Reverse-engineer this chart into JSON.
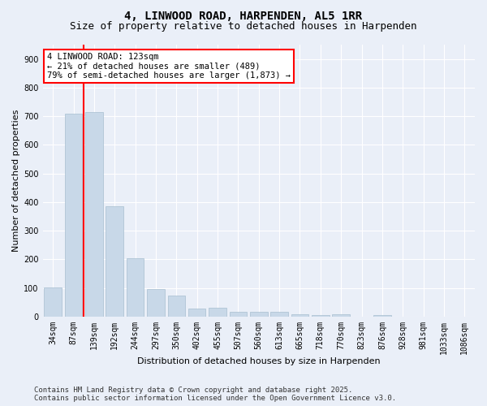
{
  "title": "4, LINWOOD ROAD, HARPENDEN, AL5 1RR",
  "subtitle": "Size of property relative to detached houses in Harpenden",
  "xlabel": "Distribution of detached houses by size in Harpenden",
  "ylabel": "Number of detached properties",
  "categories": [
    "34sqm",
    "87sqm",
    "139sqm",
    "192sqm",
    "244sqm",
    "297sqm",
    "350sqm",
    "402sqm",
    "455sqm",
    "507sqm",
    "560sqm",
    "613sqm",
    "665sqm",
    "718sqm",
    "770sqm",
    "823sqm",
    "876sqm",
    "928sqm",
    "981sqm",
    "1033sqm",
    "1086sqm"
  ],
  "values": [
    103,
    710,
    715,
    385,
    205,
    97,
    73,
    28,
    30,
    18,
    17,
    17,
    8,
    5,
    8,
    0,
    5,
    0,
    0,
    0,
    0
  ],
  "bar_color": "#c8d8e8",
  "bar_edge_color": "#a8bfd0",
  "vline_color": "red",
  "vline_x": 1.5,
  "annotation_text": "4 LINWOOD ROAD: 123sqm\n← 21% of detached houses are smaller (489)\n79% of semi-detached houses are larger (1,873) →",
  "annotation_box_color": "white",
  "annotation_box_edge": "red",
  "background_color": "#eaeff8",
  "grid_color": "white",
  "ylim": [
    0,
    950
  ],
  "yticks": [
    0,
    100,
    200,
    300,
    400,
    500,
    600,
    700,
    800,
    900
  ],
  "footer": "Contains HM Land Registry data © Crown copyright and database right 2025.\nContains public sector information licensed under the Open Government Licence v3.0.",
  "title_fontsize": 10,
  "subtitle_fontsize": 9,
  "xlabel_fontsize": 8,
  "ylabel_fontsize": 8,
  "tick_fontsize": 7,
  "annotation_fontsize": 7.5,
  "footer_fontsize": 6.5
}
